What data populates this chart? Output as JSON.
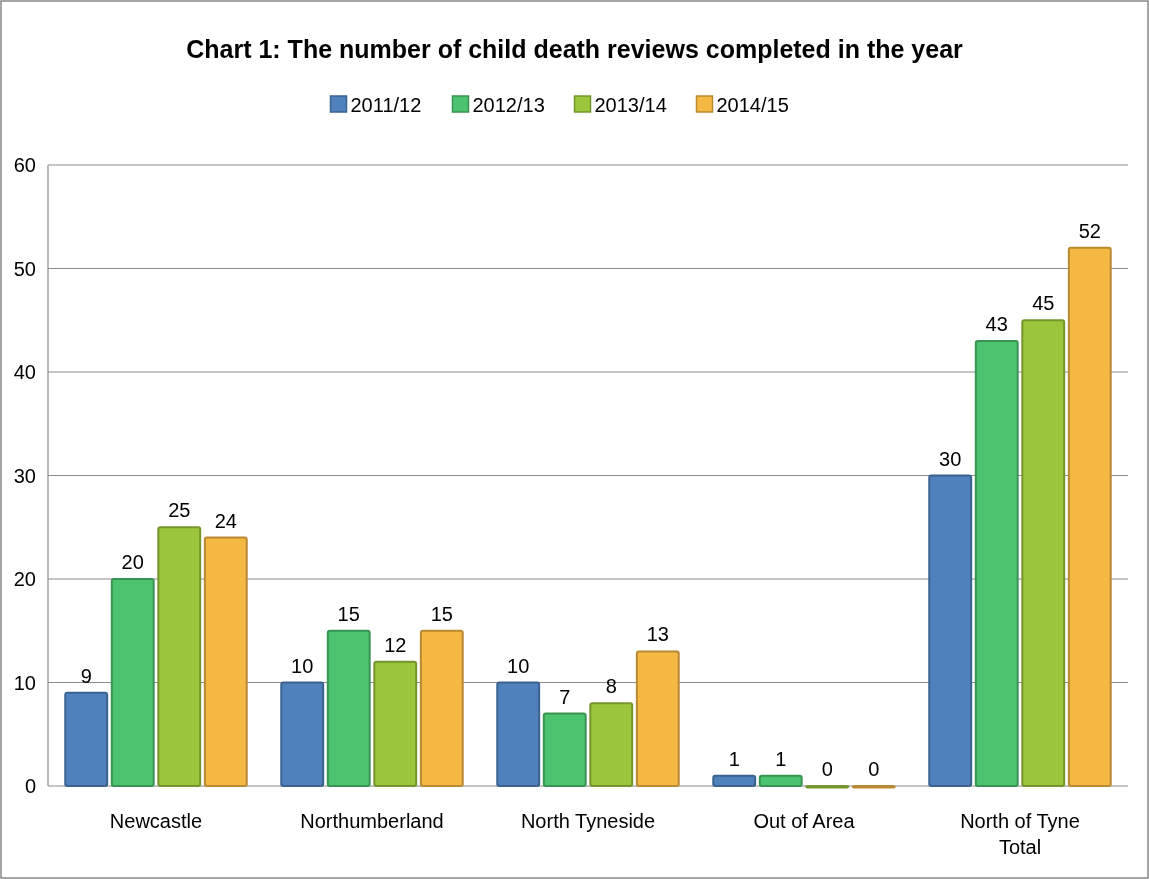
{
  "chart_data": {
    "type": "bar",
    "title": "Chart 1: The number of child death reviews completed in the year",
    "categories": [
      "Newcastle",
      "Northumberland",
      "North Tyneside",
      "Out of Area",
      "North of Tyne Total"
    ],
    "series": [
      {
        "name": "2011/12",
        "color": "#4f81bd",
        "values": [
          9,
          10,
          10,
          1,
          30
        ]
      },
      {
        "name": "2012/13",
        "color": "#4cc36f",
        "values": [
          20,
          15,
          7,
          1,
          43
        ]
      },
      {
        "name": "2013/14",
        "color": "#9bc63c",
        "values": [
          25,
          12,
          8,
          0,
          45
        ]
      },
      {
        "name": "2014/15",
        "color": "#f4b843",
        "values": [
          24,
          15,
          13,
          0,
          52
        ]
      }
    ],
    "ylim": [
      0,
      60
    ],
    "yticks": [
      0,
      10,
      20,
      30,
      40,
      50,
      60
    ],
    "grid": "y",
    "legend": "top",
    "data_labels": true
  }
}
